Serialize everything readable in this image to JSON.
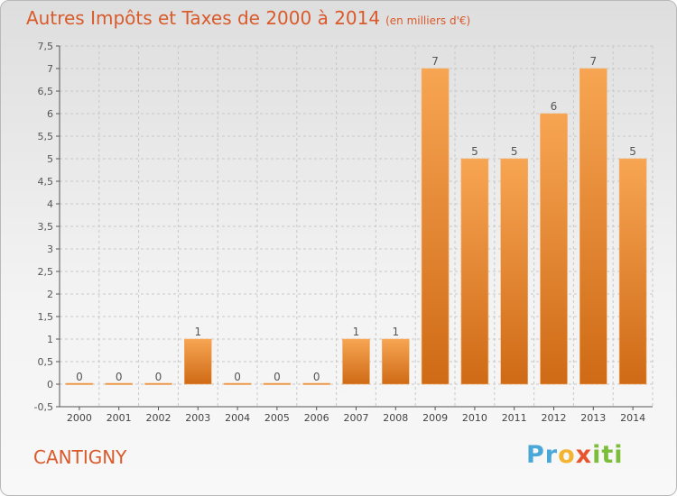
{
  "title": "Autres Impôts et Taxes de 2000 à 2014",
  "unit_note": "(en milliers d'€)",
  "city": "CANTIGNY",
  "logo": {
    "p": "Pr",
    "o": "o",
    "x": "x",
    "iti": "iti"
  },
  "colors": {
    "bar": "#e98a2f",
    "title": "#d95a2b",
    "grid": "#c8c8c8"
  },
  "chart_data": {
    "type": "bar",
    "title": "Autres Impôts et Taxes de 2000 à 2014",
    "categories": [
      "2000",
      "2001",
      "2002",
      "2003",
      "2004",
      "2005",
      "2006",
      "2007",
      "2008",
      "2009",
      "2010",
      "2011",
      "2012",
      "2013",
      "2014"
    ],
    "values": [
      0,
      0,
      0,
      1,
      0,
      0,
      0,
      1,
      1,
      7,
      5,
      5,
      6,
      7,
      5
    ],
    "labels": [
      "0",
      "0",
      "0",
      "1",
      "0",
      "0",
      "0",
      "1",
      "1",
      "7",
      "5",
      "5",
      "6",
      "7",
      "5"
    ],
    "yticks": [
      "-0,5",
      "0",
      "0,5",
      "1",
      "1,5",
      "2",
      "2,5",
      "3",
      "3,5",
      "4",
      "4,5",
      "5",
      "5,5",
      "6",
      "6,5",
      "7",
      "7,5"
    ],
    "ylim": [
      -0.5,
      7.5
    ],
    "grid": true
  }
}
